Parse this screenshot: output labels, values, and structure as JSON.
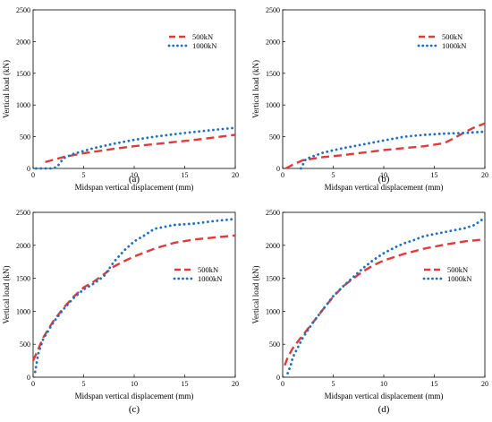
{
  "chart_data": [
    {
      "type": "line",
      "panel_label": "(a)",
      "xlabel": "Midspan vertical displacement (mm)",
      "ylabel": "Vertical load (kN)",
      "xlim": [
        0,
        20
      ],
      "ylim": [
        0,
        2500
      ],
      "xticks": [
        0,
        5,
        10,
        15,
        20
      ],
      "yticks": [
        0,
        500,
        1000,
        1500,
        2000,
        2500
      ],
      "legend_position": "top-right",
      "series": [
        {
          "name": "500kN",
          "color": "#e03a3a",
          "style": "dashed",
          "x": [
            1.2,
            3,
            5,
            8,
            10,
            13,
            16,
            18,
            20
          ],
          "y": [
            100,
            180,
            240,
            310,
            350,
            400,
            450,
            490,
            530
          ]
        },
        {
          "name": "1000kN",
          "color": "#1f6fc0",
          "style": "dotted",
          "x": [
            0.3,
            2,
            2.4,
            3,
            4,
            6,
            8,
            10,
            12,
            15,
            18,
            20
          ],
          "y": [
            0,
            0,
            30,
            160,
            230,
            320,
            390,
            450,
            500,
            560,
            610,
            640
          ]
        }
      ]
    },
    {
      "type": "line",
      "panel_label": "(b)",
      "xlabel": "Midspan vertical displacement (mm)",
      "ylabel": "Vertical load (kN)",
      "xlim": [
        0,
        20
      ],
      "ylim": [
        0,
        2500
      ],
      "xticks": [
        0,
        5,
        10,
        15,
        20
      ],
      "yticks": [
        0,
        500,
        1000,
        1500,
        2000,
        2500
      ],
      "legend_position": "top-right",
      "series": [
        {
          "name": "500kN",
          "color": "#e03a3a",
          "style": "dashed",
          "x": [
            0.3,
            1,
            2,
            4,
            6,
            8,
            10,
            12,
            14,
            16,
            17,
            18,
            19,
            20
          ],
          "y": [
            0,
            60,
            130,
            180,
            210,
            250,
            290,
            320,
            350,
            400,
            480,
            570,
            650,
            710
          ]
        },
        {
          "name": "1000kN",
          "color": "#1f6fc0",
          "style": "dotted",
          "x": [
            1.8,
            2.3,
            3,
            4,
            6,
            8,
            10,
            12,
            14,
            16,
            18,
            20
          ],
          "y": [
            0,
            150,
            190,
            250,
            320,
            380,
            440,
            500,
            530,
            550,
            560,
            580
          ]
        }
      ]
    },
    {
      "type": "line",
      "panel_label": "(c)",
      "xlabel": "Midspan vertical displacement (mm)",
      "ylabel": "Vertical load (kN)",
      "xlim": [
        0,
        20
      ],
      "ylim": [
        0,
        2500
      ],
      "xticks": [
        0,
        5,
        10,
        15,
        20
      ],
      "yticks": [
        0,
        500,
        1000,
        1500,
        2000,
        2500
      ],
      "legend_position": "right",
      "series": [
        {
          "name": "500kN",
          "color": "#e03a3a",
          "style": "dashed",
          "x": [
            0,
            0.5,
            1,
            2,
            3,
            4,
            5,
            6,
            7,
            8,
            9,
            10,
            12,
            14,
            16,
            18,
            20
          ],
          "y": [
            250,
            420,
            600,
            850,
            1050,
            1220,
            1360,
            1450,
            1560,
            1680,
            1760,
            1830,
            1950,
            2040,
            2090,
            2120,
            2150
          ]
        },
        {
          "name": "1000kN",
          "color": "#1f6fc0",
          "style": "dotted",
          "x": [
            0.2,
            0.5,
            1,
            2,
            3,
            4,
            5,
            6,
            7,
            8,
            9,
            10,
            11,
            12,
            14,
            16,
            18,
            20
          ],
          "y": [
            80,
            350,
            580,
            830,
            1030,
            1200,
            1330,
            1420,
            1530,
            1750,
            1920,
            2060,
            2150,
            2250,
            2310,
            2330,
            2370,
            2400
          ]
        }
      ]
    },
    {
      "type": "line",
      "panel_label": "(d)",
      "xlabel": "Midspan vertical displacement (mm)",
      "ylabel": "Vertical load (kN)",
      "xlim": [
        0,
        20
      ],
      "ylim": [
        0,
        2500
      ],
      "xticks": [
        0,
        5,
        10,
        15,
        20
      ],
      "yticks": [
        0,
        500,
        1000,
        1500,
        2000,
        2500
      ],
      "legend_position": "right",
      "series": [
        {
          "name": "500kN",
          "color": "#e03a3a",
          "style": "dashed",
          "x": [
            0.2,
            0.5,
            1,
            2,
            3,
            4,
            5,
            6,
            7,
            8,
            9,
            10,
            12,
            14,
            16,
            18,
            20
          ],
          "y": [
            180,
            300,
            440,
            640,
            830,
            1030,
            1220,
            1380,
            1500,
            1610,
            1700,
            1770,
            1870,
            1950,
            2010,
            2060,
            2090
          ]
        },
        {
          "name": "1000kN",
          "color": "#1f6fc0",
          "style": "dotted",
          "x": [
            0.5,
            0.8,
            1,
            2,
            3,
            4,
            5,
            6,
            7,
            8,
            9,
            10,
            11,
            12,
            13,
            14,
            16,
            18,
            19,
            20
          ],
          "y": [
            60,
            180,
            300,
            600,
            830,
            1030,
            1230,
            1380,
            1520,
            1660,
            1780,
            1880,
            1960,
            2030,
            2080,
            2140,
            2200,
            2260,
            2310,
            2420
          ]
        }
      ]
    }
  ]
}
